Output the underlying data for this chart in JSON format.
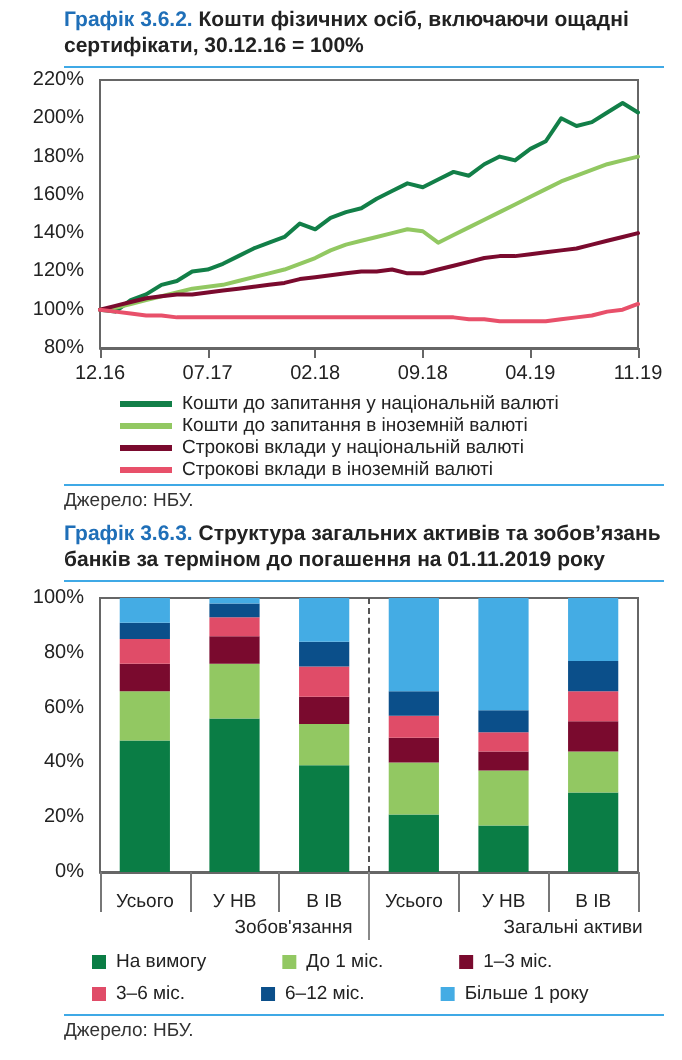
{
  "chart_data": [
    {
      "type": "line",
      "title": "Графік 3.6.2. Кошти фізичних осіб, включаючи ощадні сертифікати, 30.12.16 = 100%",
      "categories": [
        "12.16",
        null,
        null,
        null,
        null,
        null,
        null,
        "07.17",
        null,
        null,
        null,
        null,
        null,
        null,
        "02.18",
        null,
        null,
        null,
        null,
        null,
        null,
        "09.18",
        null,
        null,
        null,
        null,
        null,
        null,
        "04.19",
        null,
        null,
        null,
        null,
        null,
        null,
        "11.19"
      ],
      "series": [
        {
          "name": "Кошти до запитання у національній валюті",
          "color": "#127f48",
          "values": [
            100,
            99,
            105,
            108,
            113,
            115,
            120,
            121,
            124,
            128,
            132,
            135,
            138,
            145,
            142,
            148,
            151,
            153,
            158,
            162,
            166,
            164,
            168,
            172,
            170,
            176,
            180,
            178,
            184,
            188,
            200,
            196,
            198,
            203,
            208,
            203
          ]
        },
        {
          "name": "Кошти до запитання в іноземній валюті",
          "color": "#92c862",
          "values": [
            100,
            101,
            103,
            105,
            107,
            109,
            111,
            112,
            113,
            115,
            117,
            119,
            121,
            124,
            127,
            131,
            134,
            136,
            138,
            140,
            142,
            141,
            135,
            139,
            143,
            147,
            151,
            155,
            159,
            163,
            167,
            170,
            173,
            176,
            178,
            180
          ]
        },
        {
          "name": "Строкові вклади у національній валюті",
          "color": "#7a0a2e",
          "values": [
            100,
            102,
            104,
            106,
            107,
            108,
            108,
            109,
            110,
            111,
            112,
            113,
            114,
            116,
            117,
            118,
            119,
            120,
            120,
            121,
            119,
            119,
            121,
            123,
            125,
            127,
            128,
            128,
            129,
            130,
            131,
            132,
            134,
            136,
            138,
            140
          ]
        },
        {
          "name": "Строкові вклади в іноземній валюті",
          "color": "#e8506a",
          "values": [
            100,
            99,
            98,
            97,
            97,
            96,
            96,
            96,
            96,
            96,
            96,
            96,
            96,
            96,
            96,
            96,
            96,
            96,
            96,
            96,
            96,
            96,
            96,
            96,
            95,
            95,
            94,
            94,
            94,
            94,
            95,
            96,
            97,
            99,
            100,
            103
          ]
        }
      ],
      "ylim": [
        80,
        220
      ],
      "yticks": [
        {
          "value": 80,
          "label": "80%"
        },
        {
          "value": 100,
          "label": "100%"
        },
        {
          "value": 120,
          "label": "120%"
        },
        {
          "value": 140,
          "label": "140%"
        },
        {
          "value": 160,
          "label": "160%"
        },
        {
          "value": 180,
          "label": "180%"
        },
        {
          "value": 200,
          "label": "200%"
        },
        {
          "value": 220,
          "label": "220%"
        }
      ],
      "legend": "bottom",
      "grid": false,
      "marker": "none",
      "line_style": "solid",
      "annotations": [
        "Джерело: НБУ."
      ]
    },
    {
      "type": "bar",
      "title": "Графік 3.6.3. Структура загальних активів та зобов’язань банків за терміном до погашення на 01.11.2019 року",
      "categories": [
        "Усього",
        "У НВ",
        "В ІВ",
        "Усього",
        "У НВ",
        "В ІВ"
      ],
      "stacked": true,
      "series": [
        {
          "name": "На вимогу",
          "color": "#0a7d45",
          "values": [
            48,
            56,
            39,
            21,
            17,
            29
          ]
        },
        {
          "name": "До 1 міс.",
          "color": "#92c862",
          "values": [
            18,
            20,
            15,
            19,
            20,
            15
          ]
        },
        {
          "name": "1–3 міс.",
          "color": "#7a0a2e",
          "values": [
            10,
            10,
            10,
            9,
            7,
            11
          ]
        },
        {
          "name": "3–6 міс.",
          "color": "#e04c68",
          "values": [
            9,
            7,
            11,
            8,
            7,
            11
          ]
        },
        {
          "name": "6–12 міс.",
          "color": "#0b4f8a",
          "values": [
            6,
            5,
            9,
            9,
            8,
            11
          ]
        },
        {
          "name": "Більше 1 року",
          "color": "#44ace4",
          "values": [
            9,
            2,
            16,
            34,
            41,
            23
          ]
        }
      ],
      "ylim": [
        0,
        100
      ],
      "yticks": [
        {
          "value": 0,
          "label": "0%"
        },
        {
          "value": 20,
          "label": "20%"
        },
        {
          "value": 40,
          "label": "40%"
        },
        {
          "value": 60,
          "label": "60%"
        },
        {
          "value": 80,
          "label": "80%"
        },
        {
          "value": 100,
          "label": "100%"
        }
      ],
      "legend": "bottom",
      "grid": false,
      "annotations": [
        "Зобов'язання",
        "Загальні активи",
        "Джерело: НБУ."
      ]
    }
  ]
}
